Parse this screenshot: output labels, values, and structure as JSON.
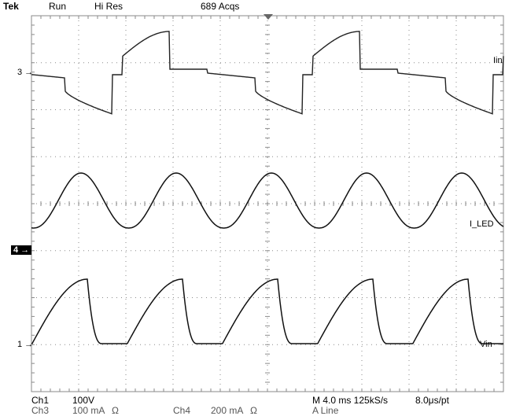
{
  "status_bar": {
    "brand": "Tek",
    "mode": "Run",
    "acq_mode": "Hi Res",
    "acquisitions": "689 Acqs"
  },
  "markers": {
    "ch3": "3",
    "ch4": "4",
    "ch1": "1"
  },
  "trace_labels": {
    "iin": "Iin",
    "iled": "I_LED",
    "vin": "Vin"
  },
  "readout": {
    "ch1_label": "Ch1",
    "ch1_scale": "100V",
    "ch3_label": "Ch3",
    "ch3_scale": "100 mA",
    "ch3_coupling": "Ω",
    "ch4_label": "Ch4",
    "ch4_scale": "200 mA",
    "ch4_coupling": "Ω",
    "timebase": "M 4.0 ms 125kS/s",
    "sample_interval": "8.0μs/pt",
    "trigger": "A Line"
  },
  "colors": {
    "grid": "#8a8a8a",
    "trace": "#111111",
    "background": "#ffffff"
  }
}
